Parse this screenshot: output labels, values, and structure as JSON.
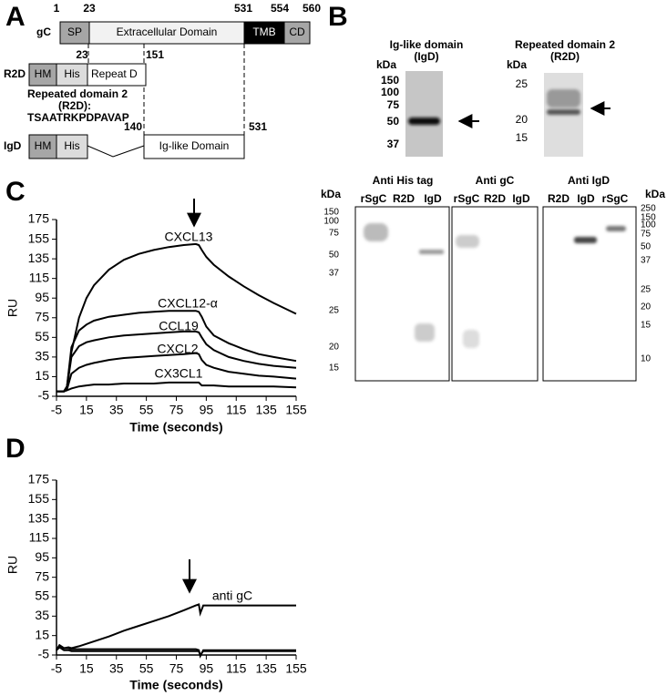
{
  "panel_a": {
    "label": "A",
    "gc": {
      "name": "gC",
      "positions": [
        1,
        23,
        531,
        554,
        560
      ],
      "domains": [
        "SP",
        "Extracellular Domain",
        "TMB",
        "CD"
      ]
    },
    "r2d": {
      "name": "R2D",
      "positions": [
        23,
        151
      ],
      "domains": [
        "HM",
        "His",
        "Repeat D"
      ],
      "note_title": "Repeated domain 2",
      "note_abbr": "(R2D):",
      "sequence": "TSAATRKPDPAVAP"
    },
    "igd": {
      "name": "IgD",
      "positions": [
        140,
        531
      ],
      "domains": [
        "HM",
        "His",
        "Ig-like Domain"
      ]
    }
  },
  "panel_b": {
    "label": "B",
    "top_blots": [
      {
        "title": "Ig-like domain",
        "subtitle": "(IgD)",
        "unit": "kDa",
        "markers": [
          150,
          100,
          75,
          50,
          37
        ]
      },
      {
        "title": "Repeated  domain 2",
        "subtitle": "(R2D)",
        "unit": "kDa",
        "markers": [
          25,
          20,
          15
        ]
      }
    ],
    "western": {
      "unit_left": "kDa",
      "markers_left": [
        150,
        100,
        75,
        50,
        37,
        25,
        20,
        15
      ],
      "unit_right": "kDa",
      "markers_right": [
        250,
        150,
        100,
        75,
        50,
        37,
        25,
        20,
        15,
        10
      ],
      "blots": [
        {
          "title": "Anti His tag",
          "lanes": [
            "rSgC",
            "R2D",
            "IgD"
          ]
        },
        {
          "title": "Anti gC",
          "lanes": [
            "rSgC",
            "R2D",
            "IgD"
          ]
        },
        {
          "title": "Anti IgD",
          "lanes": [
            "R2D",
            "IgD",
            "rSgC"
          ]
        }
      ]
    }
  },
  "chart_data": [
    {
      "type": "line",
      "panel_label": "C",
      "x_label": "Time (seconds)",
      "y_label": "RU",
      "xlim": [
        -5,
        155
      ],
      "ylim": [
        -5,
        175
      ],
      "xticks": [
        -5,
        15,
        35,
        55,
        75,
        95,
        115,
        135,
        155
      ],
      "yticks": [
        -5,
        15,
        35,
        55,
        75,
        95,
        115,
        135,
        155,
        175
      ],
      "x": [
        -5,
        0,
        2,
        5,
        10,
        15,
        20,
        30,
        40,
        50,
        60,
        70,
        80,
        88,
        90,
        92,
        95,
        100,
        110,
        120,
        130,
        140,
        155
      ],
      "series": [
        {
          "name": "CXCL13",
          "color": "#000000",
          "values": [
            0,
            0,
            5,
            40,
            75,
            95,
            108,
            124,
            134,
            140,
            144,
            147,
            149,
            150,
            149,
            144,
            137,
            129,
            117,
            107,
            98,
            90,
            79
          ]
        },
        {
          "name": "CXCL12-α",
          "color": "#000000",
          "values": [
            0,
            0,
            5,
            45,
            62,
            68,
            72,
            76,
            78,
            80,
            81,
            82,
            82,
            82,
            81,
            76,
            66,
            57,
            49,
            43,
            38,
            35,
            31
          ]
        },
        {
          "name": "CCL19",
          "color": "#000000",
          "values": [
            0,
            0,
            4,
            35,
            46,
            50,
            52,
            55,
            57,
            58,
            59,
            60,
            61,
            61,
            60,
            55,
            48,
            42,
            35,
            31,
            28,
            26,
            24
          ]
        },
        {
          "name": "CXCL2",
          "color": "#000000",
          "values": [
            0,
            0,
            2,
            18,
            24,
            27,
            29,
            32,
            34,
            35,
            36,
            37,
            38,
            39,
            38,
            32,
            27,
            24,
            20,
            18,
            16,
            15,
            13
          ]
        },
        {
          "name": "CX3CL1",
          "color": "#000000",
          "values": [
            0,
            0,
            1,
            3,
            5,
            6,
            7,
            7,
            8,
            8,
            8,
            9,
            9,
            9,
            9,
            6,
            6,
            6,
            5,
            5,
            5,
            5,
            4
          ]
        }
      ]
    },
    {
      "type": "line",
      "panel_label": "D",
      "x_label": "Time (seconds)",
      "y_label": "RU",
      "xlim": [
        -5,
        155
      ],
      "ylim": [
        -5,
        175
      ],
      "xticks": [
        -5,
        15,
        35,
        55,
        75,
        95,
        115,
        135,
        155
      ],
      "yticks": [
        -5,
        15,
        35,
        55,
        75,
        95,
        115,
        135,
        155,
        175
      ],
      "x": [
        -5,
        -3,
        0,
        3,
        5,
        10,
        20,
        30,
        40,
        50,
        60,
        70,
        80,
        88,
        90,
        91,
        93,
        100,
        120,
        140,
        155
      ],
      "series": [
        {
          "name": "anti gC",
          "color": "#000000",
          "values": [
            0,
            5,
            2,
            3,
            2,
            4,
            9,
            14,
            20,
            25,
            30,
            35,
            41,
            46,
            47,
            38,
            46,
            46,
            46,
            46,
            46
          ]
        },
        {
          "color": "#000000",
          "values": [
            0,
            5,
            2,
            2,
            1,
            1,
            1,
            1,
            1,
            1,
            1,
            1,
            1,
            1,
            0,
            -6,
            0,
            0,
            0,
            0,
            0
          ]
        },
        {
          "color": "#000000",
          "values": [
            0,
            3,
            0,
            0,
            -1,
            -1,
            -1,
            -1,
            -1,
            -1,
            -1,
            -1,
            -1,
            -1,
            -1,
            -5,
            -1,
            -1,
            -1,
            -1,
            -1
          ]
        }
      ]
    }
  ]
}
